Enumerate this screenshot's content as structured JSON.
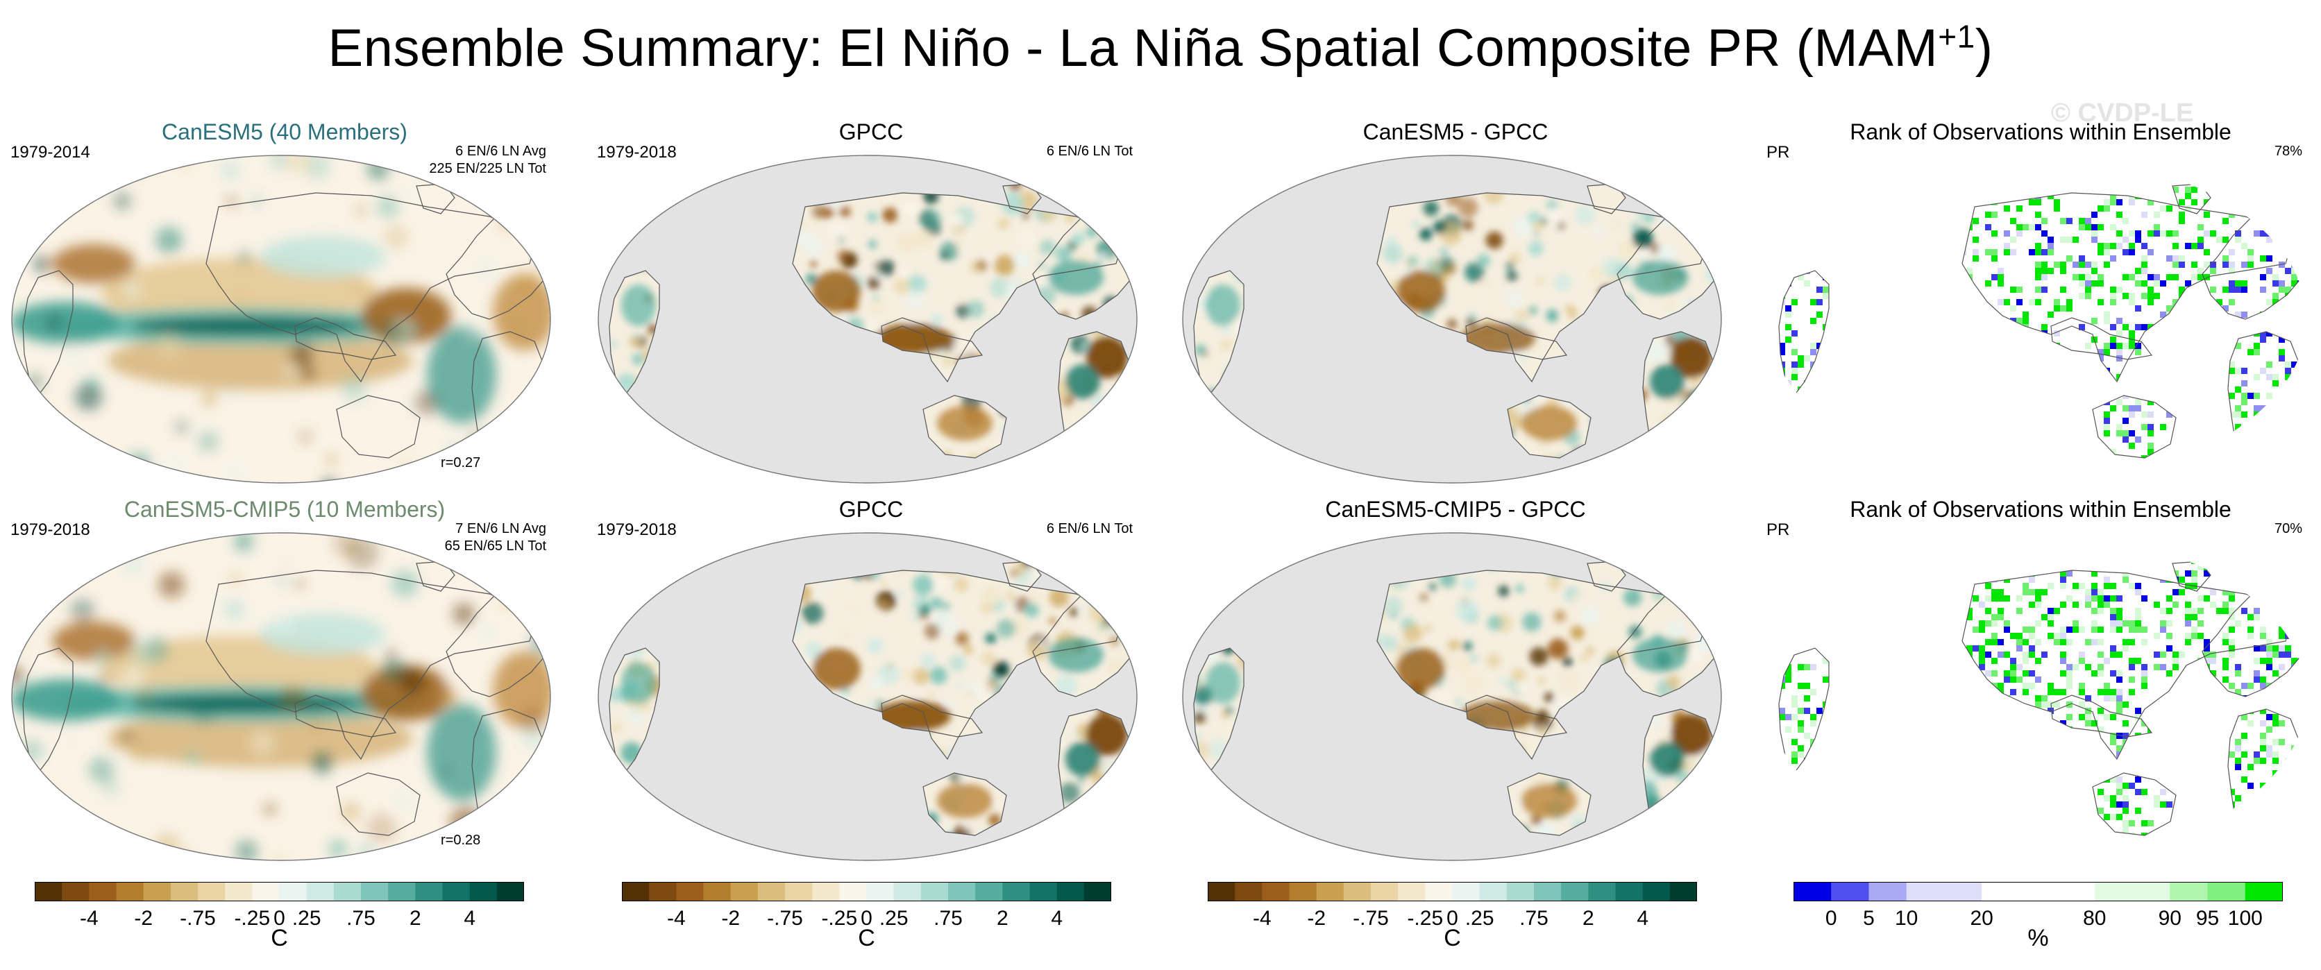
{
  "figure": {
    "title_main": "Ensemble Summary: El Niño - La Niña Spatial Composite PR (MAM",
    "title_sup": "+1",
    "title_close": ")",
    "watermark": "© CVDP-LE"
  },
  "panels": [
    {
      "title": "CanESM5 (40 Members)",
      "title_style": "teal",
      "left": "1979-2014",
      "right_lines": [
        "6 EN/6 LN Avg",
        "225 EN/225 LN Tot"
      ],
      "corr": "r=0.27",
      "kind": "model"
    },
    {
      "title": "GPCC",
      "title_style": "black",
      "left": "1979-2018",
      "right_lines": [
        "6 EN/6 LN Tot"
      ],
      "corr": "",
      "kind": "obs"
    },
    {
      "title": "CanESM5 - GPCC",
      "title_style": "black",
      "left": "",
      "right_lines": [],
      "corr": "",
      "kind": "diff"
    },
    {
      "title": "Rank of Observations within Ensemble",
      "title_style": "black",
      "left": "PR",
      "right_lines": [
        "78%"
      ],
      "corr": "",
      "kind": "rank"
    },
    {
      "title": "CanESM5-CMIP5 (10 Members)",
      "title_style": "sage",
      "left": "1979-2018",
      "right_lines": [
        "7 EN/6 LN Avg",
        "65 EN/65 LN Tot"
      ],
      "corr": "r=0.28",
      "kind": "model"
    },
    {
      "title": "GPCC",
      "title_style": "black",
      "left": "1979-2018",
      "right_lines": [
        "6 EN/6 LN Tot"
      ],
      "corr": "",
      "kind": "obs"
    },
    {
      "title": "CanESM5-CMIP5 - GPCC",
      "title_style": "black",
      "left": "",
      "right_lines": [],
      "corr": "",
      "kind": "diff"
    },
    {
      "title": "Rank of Observations within Ensemble",
      "title_style": "black",
      "left": "PR",
      "right_lines": [
        "70%"
      ],
      "corr": "",
      "kind": "rank"
    }
  ],
  "colorbars": {
    "diverging": {
      "unit": "C",
      "colors": [
        "#543005",
        "#7f4a10",
        "#9b5f1b",
        "#b37d2e",
        "#c9a050",
        "#dbbd7d",
        "#e8d4a4",
        "#f3e8cc",
        "#faf5ea",
        "#eaf5f2",
        "#cfeae5",
        "#a9dbd2",
        "#7fc5b9",
        "#55ad9f",
        "#2f8f81",
        "#137366",
        "#035a4c",
        "#003c30"
      ],
      "tick_labels": [
        "-4",
        "-2",
        "-.75",
        "-.25",
        "0",
        ".25",
        ".75",
        "2",
        "4"
      ],
      "tick_positions": [
        2,
        4,
        6,
        8,
        9,
        10,
        12,
        14,
        16
      ]
    },
    "rank": {
      "unit": "%",
      "colors": [
        "#0000e6",
        "#5050ee",
        "#a8a8f4",
        "#dedef8",
        "#dedef8",
        "#ffffff",
        "#ffffff",
        "#ffffff",
        "#e2fae2",
        "#e2fae2",
        "#aef5ae",
        "#80f080",
        "#00e600"
      ],
      "tick_labels": [
        "0",
        "5",
        "10",
        "20",
        "80",
        "90",
        "95",
        "100"
      ],
      "tick_positions": [
        1,
        2,
        3,
        5,
        8,
        10,
        11,
        12
      ]
    }
  },
  "chart_data": [
    {
      "type": "heatmap",
      "title": "CanESM5 (40 Members)",
      "period": "1979-2014",
      "annotation": [
        "6 EN/6 LN Avg",
        "225 EN/225 LN Tot"
      ],
      "pattern_correlation": 0.27,
      "units": "C",
      "levels": [
        -4,
        -2,
        -0.75,
        -0.25,
        0,
        0.25,
        0.75,
        2,
        4
      ]
    },
    {
      "type": "heatmap",
      "title": "GPCC",
      "period": "1979-2018",
      "annotation": [
        "6 EN/6 LN Tot"
      ],
      "units": "C",
      "levels": [
        -4,
        -2,
        -0.75,
        -0.25,
        0,
        0.25,
        0.75,
        2,
        4
      ]
    },
    {
      "type": "heatmap",
      "title": "CanESM5 - GPCC",
      "units": "C",
      "levels": [
        -4,
        -2,
        -0.75,
        -0.25,
        0,
        0.25,
        0.75,
        2,
        4
      ]
    },
    {
      "type": "heatmap",
      "title": "Rank of Observations within Ensemble",
      "variable": "PR",
      "fraction_within": "78%",
      "units": "%",
      "levels": [
        0,
        5,
        10,
        20,
        80,
        90,
        95,
        100
      ]
    },
    {
      "type": "heatmap",
      "title": "CanESM5-CMIP5 (10 Members)",
      "period": "1979-2018",
      "annotation": [
        "7 EN/6 LN Avg",
        "65 EN/65 LN Tot"
      ],
      "pattern_correlation": 0.28,
      "units": "C",
      "levels": [
        -4,
        -2,
        -0.75,
        -0.25,
        0,
        0.25,
        0.75,
        2,
        4
      ]
    },
    {
      "type": "heatmap",
      "title": "GPCC",
      "period": "1979-2018",
      "annotation": [
        "6 EN/6 LN Tot"
      ],
      "units": "C",
      "levels": [
        -4,
        -2,
        -0.75,
        -0.25,
        0,
        0.25,
        0.75,
        2,
        4
      ]
    },
    {
      "type": "heatmap",
      "title": "CanESM5-CMIP5 - GPCC",
      "units": "C",
      "levels": [
        -4,
        -2,
        -0.75,
        -0.25,
        0,
        0.25,
        0.75,
        2,
        4
      ]
    },
    {
      "type": "heatmap",
      "title": "Rank of Observations within Ensemble",
      "variable": "PR",
      "fraction_within": "70%",
      "units": "%",
      "levels": [
        0,
        5,
        10,
        20,
        80,
        90,
        95,
        100
      ]
    }
  ]
}
